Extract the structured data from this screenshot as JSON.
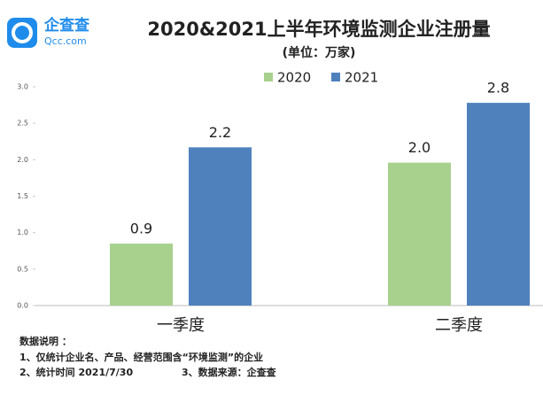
{
  "brand": {
    "name": "企查查",
    "url": "Qcc.com"
  },
  "chart_data": {
    "type": "bar",
    "title": "2020&2021上半年环境监测企业注册量",
    "subtitle": "(单位：万家)",
    "categories": [
      "一季度",
      "二季度"
    ],
    "series": [
      {
        "name": "2020",
        "color": "#a9d18e",
        "values": [
          0.85,
          1.96
        ],
        "value_labels": [
          "0.9",
          "2.0"
        ]
      },
      {
        "name": "2021",
        "color": "#4f81bd",
        "values": [
          2.17,
          2.78
        ],
        "value_labels": [
          "2.2",
          "2.8"
        ]
      }
    ],
    "ylim": [
      0,
      3
    ],
    "yticks": [
      {
        "value": 0,
        "label": "0.0"
      },
      {
        "value": 0.5,
        "label": "0.5"
      },
      {
        "value": 1,
        "label": "1.0"
      },
      {
        "value": 1.5,
        "label": "1.5"
      },
      {
        "value": 2,
        "label": "2.0"
      },
      {
        "value": 2.5,
        "label": "2.5"
      },
      {
        "value": 3,
        "label": "3.0"
      }
    ],
    "grid": false,
    "notes": [
      "数据说明 ：",
      "1、仅统计企业名、产品、经营范围含“环境监测”的企业",
      "2、统计时间 2021/7/30",
      "3、数据来源：企查查"
    ]
  }
}
